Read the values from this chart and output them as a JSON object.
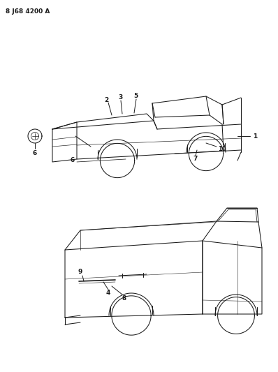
{
  "title": "8 J68 4200 A",
  "bg_color": "#ffffff",
  "line_color": "#1a1a1a",
  "text_color": "#000000",
  "title_fontsize": 6.5,
  "label_fontsize": 6.5,
  "fig_width": 3.98,
  "fig_height": 5.33,
  "dpi": 100
}
